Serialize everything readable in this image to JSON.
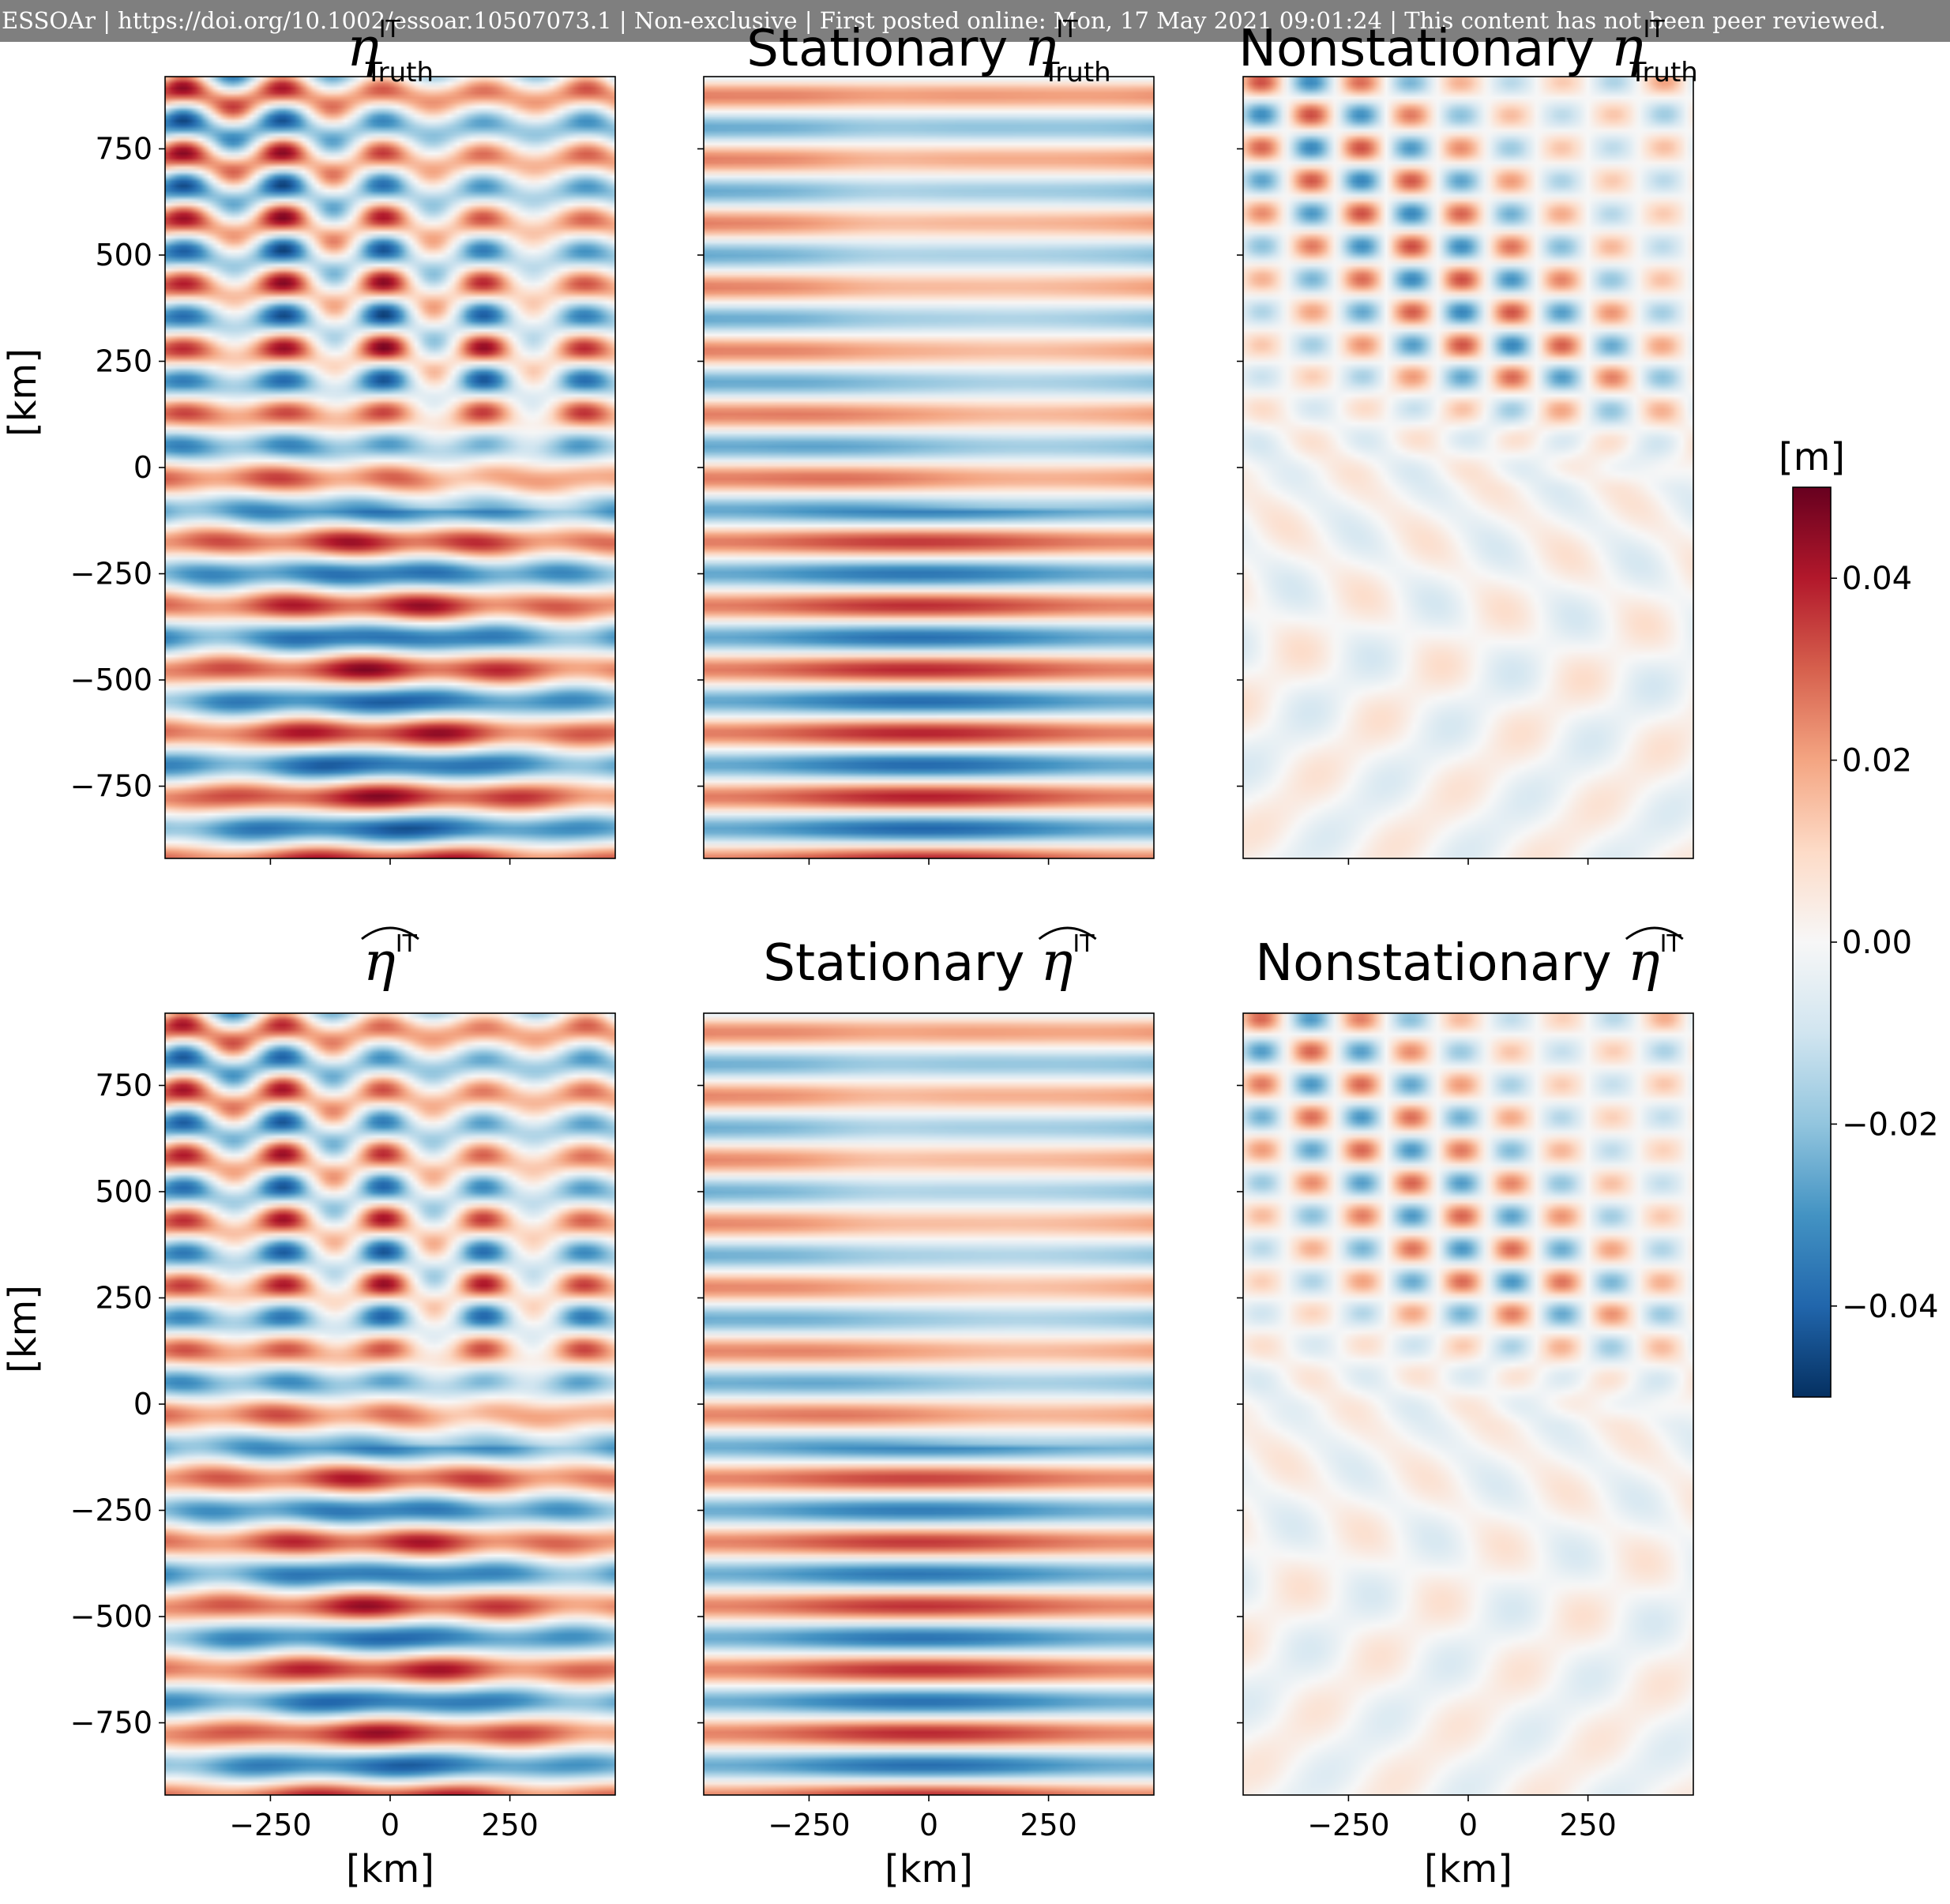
{
  "banner": "ESSOAr | https://doi.org/10.1002/essoar.10507073.1 | Non-exclusive | First posted online: Mon, 17 May 2021 09:01:24 | This content has not been peer reviewed.",
  "chart_data": {
    "type": "heatmap",
    "panels": [
      {
        "row": 0,
        "col": 0,
        "title_prefix": "",
        "symbol": "η",
        "superscript": "IT",
        "subscript": "Truth",
        "hat": false,
        "pattern": "full"
      },
      {
        "row": 0,
        "col": 1,
        "title_prefix": "Stationary ",
        "symbol": "η",
        "superscript": "IT",
        "subscript": "Truth",
        "hat": false,
        "pattern": "stationary"
      },
      {
        "row": 0,
        "col": 2,
        "title_prefix": "Nonstationary ",
        "symbol": "η",
        "superscript": "IT",
        "subscript": "Truth",
        "hat": false,
        "pattern": "nonstationary"
      },
      {
        "row": 1,
        "col": 0,
        "title_prefix": "",
        "symbol": "η",
        "superscript": "IT",
        "subscript": "",
        "hat": true,
        "pattern": "full"
      },
      {
        "row": 1,
        "col": 1,
        "title_prefix": "Stationary ",
        "symbol": "η",
        "superscript": "IT",
        "subscript": "",
        "hat": true,
        "pattern": "stationary"
      },
      {
        "row": 1,
        "col": 2,
        "title_prefix": "Nonstationary ",
        "symbol": "η",
        "superscript": "IT",
        "subscript": "",
        "hat": true,
        "pattern": "nonstationary"
      }
    ],
    "x_range": [
      -470,
      470
    ],
    "y_range": [
      -920,
      920
    ],
    "x_ticks": [
      -250,
      0,
      250
    ],
    "x_tick_labels": [
      "−250",
      "0",
      "250"
    ],
    "y_ticks": [
      750,
      500,
      250,
      0,
      -250,
      -500,
      -750
    ],
    "y_tick_labels": [
      "750",
      "500",
      "250",
      "0",
      "−250",
      "−500",
      "−750"
    ],
    "xlabel": "[km]",
    "ylabel": "[km]",
    "colorbar": {
      "label": "[m]",
      "range": [
        -0.05,
        0.05
      ],
      "ticks": [
        0.04,
        0.02,
        0.0,
        -0.02,
        -0.04
      ],
      "tick_labels": [
        "0.04",
        "0.02",
        "0.00",
        "−0.02",
        "−0.04"
      ],
      "colormap": "RdBu_r",
      "colors": [
        "#053061",
        "#2166ac",
        "#4393c3",
        "#92c5de",
        "#d1e5f0",
        "#f7f7f7",
        "#fddbc7",
        "#f4a582",
        "#d6604d",
        "#b2182b",
        "#67001f"
      ]
    }
  }
}
